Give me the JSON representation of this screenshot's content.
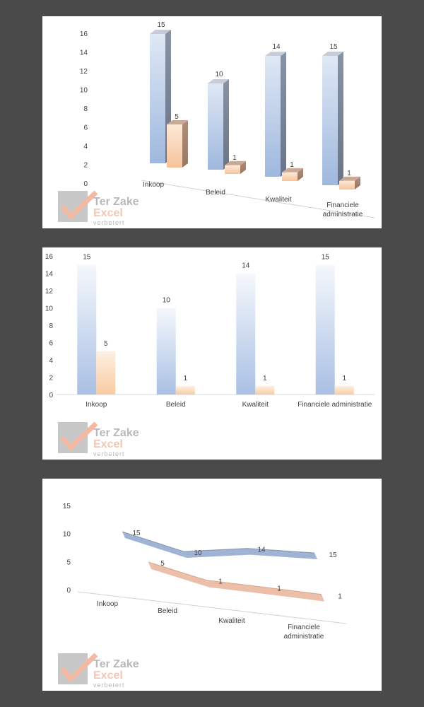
{
  "chart_data": [
    {
      "type": "bar",
      "style": "3d-column",
      "categories": [
        "Inkoop",
        "Beleid",
        "Kwaliteit",
        "Financiele administratie"
      ],
      "series": [
        {
          "values": [
            15,
            10,
            14,
            15
          ],
          "color": "#9fb8de"
        },
        {
          "values": [
            5,
            1,
            1,
            1
          ],
          "color": "#f6c39a"
        }
      ],
      "yticks": [
        "0",
        "2",
        "4",
        "6",
        "8",
        "10",
        "12",
        "14",
        "16"
      ],
      "ylim": [
        0,
        16
      ]
    },
    {
      "type": "bar",
      "categories": [
        "Inkoop",
        "Beleid",
        "Kwaliteit",
        "Financiele administratie"
      ],
      "series": [
        {
          "values": [
            15,
            10,
            14,
            15
          ],
          "color": "#a9c0e4"
        },
        {
          "values": [
            5,
            1,
            1,
            1
          ],
          "color": "#f8cba1"
        }
      ],
      "yticks": [
        "0",
        "2",
        "4",
        "6",
        "8",
        "10",
        "12",
        "14",
        "16"
      ],
      "ylim": [
        0,
        16
      ]
    },
    {
      "type": "line",
      "style": "3d-line",
      "categories": [
        "Inkoop",
        "Beleid",
        "Kwaliteit",
        "Financiele administratie"
      ],
      "series": [
        {
          "values": [
            15,
            10,
            14,
            15
          ],
          "color": "#8ea7cc"
        },
        {
          "values": [
            5,
            1,
            1,
            1
          ],
          "color": "#e8a17a"
        }
      ],
      "yticks": [
        "0",
        "5",
        "10",
        "15"
      ],
      "ylim": [
        0,
        15
      ]
    }
  ],
  "watermark": {
    "line1": "Ter Zake",
    "line2": "Excel",
    "line3": "verbetert"
  }
}
